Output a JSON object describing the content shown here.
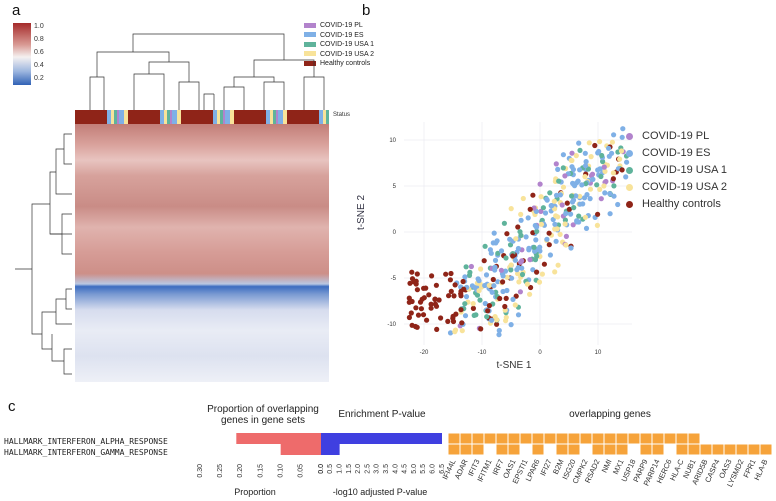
{
  "panels": {
    "a": "a",
    "b": "b",
    "c": "c"
  },
  "colorbar": {
    "ticks": [
      "1.0",
      "0.8",
      "0.6",
      "0.4",
      "0.2"
    ]
  },
  "status_label": "Status",
  "legend_a": [
    {
      "label": "COVID-19 PL",
      "color": "#b283cc"
    },
    {
      "label": "COVID-19 ES",
      "color": "#7fb0e6"
    },
    {
      "label": "COVID-19 USA 1",
      "color": "#5fb39b"
    },
    {
      "label": "COVID-19 USA 2",
      "color": "#f8e39a"
    },
    {
      "label": "Healthy controls",
      "color": "#8f2418"
    }
  ],
  "tsne": {
    "xlabel": "t-SNE 1",
    "ylabel": "t-SNE 2",
    "xticks": [
      "-20",
      "-10",
      "0",
      "10"
    ],
    "yticks": [
      "10",
      "5",
      "0",
      "-5",
      "-10"
    ],
    "legend": [
      {
        "label": "COVID-19 PL",
        "color": "#b283cc"
      },
      {
        "label": "COVID-19 ES",
        "color": "#7fb0e6"
      },
      {
        "label": "COVID-19 USA 1",
        "color": "#5fb39b"
      },
      {
        "label": "COVID-19 USA 2",
        "color": "#f8e39a"
      },
      {
        "label": "Healthy controls",
        "color": "#8f2418"
      }
    ]
  },
  "panel_c": {
    "title_proportion": "Proportion of overlapping genes in gene sets",
    "title_enrichment": "Enrichment P-value",
    "title_genes": "overlapping genes",
    "row_labels": [
      "HALLMARK_INTERFERON_ALPHA_RESPONSE",
      "HALLMARK_INTERFERON_GAMMA_RESPONSE"
    ],
    "proportion_ticks": [
      "0.30",
      "0.25",
      "0.20",
      "0.15",
      "0.10",
      "0.05",
      "0.0"
    ],
    "pvalue_ticks": [
      "0.0",
      "0.5",
      "1.0",
      "1.5",
      "2.0",
      "2.5",
      "3.0",
      "3.5",
      "4.0",
      "4.5",
      "5.0",
      "5.5",
      "6.0",
      "6.5"
    ],
    "xlabel_proportion": "Proportion",
    "xlabel_pvalue": "-log10 adjusted P-value",
    "genes": [
      "IFI44L",
      "ADAR",
      "IFIT3",
      "IFITM1",
      "IRF7",
      "OAS1",
      "EPSTI1",
      "LPAR6",
      "IFI27",
      "B2M",
      "ISG20",
      "CMPK2",
      "RSAD2",
      "NMI",
      "MX1",
      "USP18",
      "PARP9",
      "PARP14",
      "HERC6",
      "HLA-C",
      "NUB1",
      "ARID5B",
      "CASP4",
      "OAS3",
      "LYSMD2",
      "FPR1",
      "HLA-B"
    ],
    "alpha_membership": [
      1,
      1,
      1,
      1,
      1,
      1,
      1,
      1,
      1,
      1,
      1,
      1,
      1,
      1,
      1,
      1,
      1,
      1,
      1,
      1,
      1,
      0,
      0,
      0,
      0,
      0,
      0
    ],
    "gamma_membership": [
      1,
      1,
      1,
      0,
      1,
      1,
      0,
      1,
      0,
      1,
      1,
      0,
      1,
      1,
      1,
      0,
      1,
      1,
      0,
      1,
      1,
      1,
      1,
      1,
      1,
      1,
      1
    ],
    "colors": {
      "proportion_bar": "#ee6b6b",
      "pvalue_bar": "#3f3fe0",
      "gene_cell": "#f6a33a"
    },
    "chart_data": [
      {
        "type": "bar",
        "orientation": "horizontal",
        "title": "Proportion of overlapping genes in gene sets",
        "xlabel": "Proportion",
        "categories": [
          "HALLMARK_INTERFERON_ALPHA_RESPONSE",
          "HALLMARK_INTERFERON_GAMMA_RESPONSE"
        ],
        "values": [
          0.21,
          0.1
        ],
        "xlim": [
          0.3,
          0.0
        ]
      },
      {
        "type": "bar",
        "orientation": "horizontal",
        "title": "Enrichment P-value",
        "xlabel": "-log10 adjusted P-value",
        "categories": [
          "HALLMARK_INTERFERON_ALPHA_RESPONSE",
          "HALLMARK_INTERFERON_GAMMA_RESPONSE"
        ],
        "values": [
          6.5,
          1.0
        ],
        "xlim": [
          0.0,
          6.5
        ]
      }
    ]
  }
}
